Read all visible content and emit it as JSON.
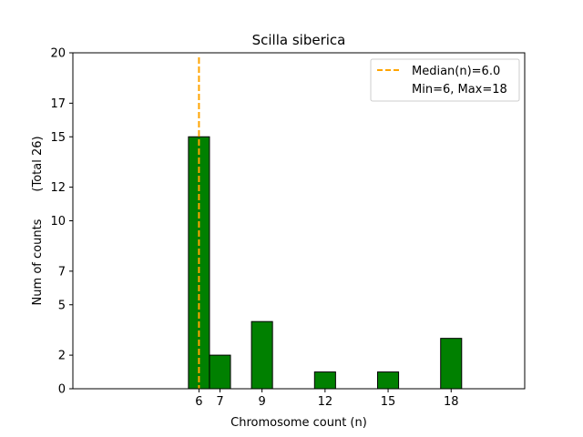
{
  "chart_data": {
    "type": "bar",
    "title": "Scilla siberica",
    "xlabel": "Chromosome count (n)",
    "ylabel": "Num of counts",
    "ylabel_note": "(Total 26)",
    "xlim": [
      0,
      21.5
    ],
    "ylim": [
      0,
      20
    ],
    "x_ticks": [
      6,
      7,
      9,
      12,
      15,
      18
    ],
    "y_ticks": [
      0,
      2,
      5,
      7,
      10,
      12,
      15,
      17,
      20
    ],
    "bars": [
      {
        "x": 6,
        "count": 15
      },
      {
        "x": 7,
        "count": 2
      },
      {
        "x": 9,
        "count": 4
      },
      {
        "x": 12,
        "count": 1
      },
      {
        "x": 15,
        "count": 1
      },
      {
        "x": 18,
        "count": 3
      }
    ],
    "bar_color": "#008000",
    "median": 6.0,
    "median_color": "#FFA500",
    "legend": {
      "position": "top-right",
      "entries": [
        "Median(n)=6.0",
        "Min=6, Max=18"
      ]
    }
  }
}
